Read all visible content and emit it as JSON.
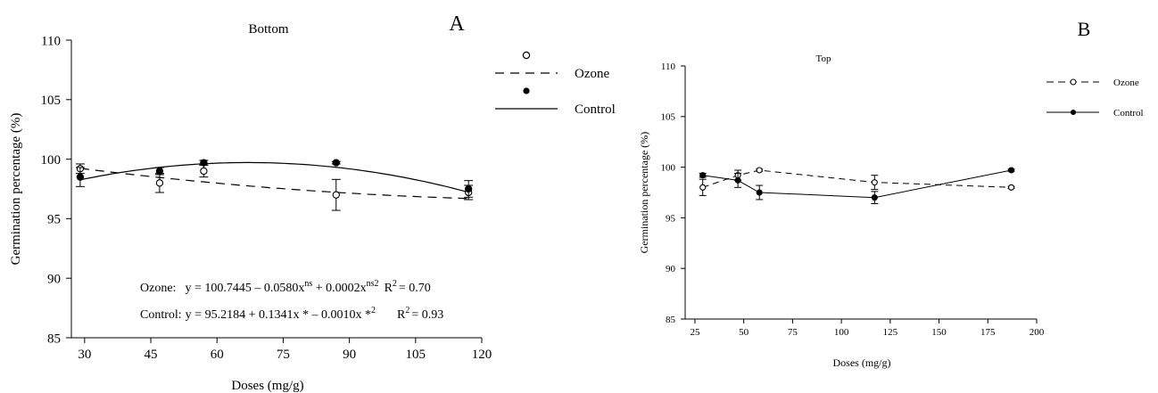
{
  "chart_data": [
    {
      "type": "scatter",
      "panel_label": "A",
      "title": "Bottom",
      "xlabel": "Doses (mg/g)",
      "ylabel": "Germination percentage (%)",
      "xlim": [
        27,
        120
      ],
      "ylim": [
        85,
        110
      ],
      "xticks": [
        30,
        45,
        60,
        75,
        90,
        105,
        120
      ],
      "yticks": [
        85,
        90,
        95,
        100,
        105,
        110
      ],
      "legend_position": "top-right",
      "series": [
        {
          "name": "Ozone",
          "marker": "open-circle",
          "line": "dashed",
          "x": [
            29,
            47,
            57,
            87,
            117
          ],
          "y": [
            99.2,
            98.0,
            99.0,
            97.0,
            97.2
          ],
          "err": [
            0.4,
            0.8,
            0.5,
            1.3,
            0.6
          ],
          "fit": [
            100.7445,
            -0.058,
            0.0002
          ]
        },
        {
          "name": "Control",
          "marker": "filled-circle",
          "line": "solid",
          "x": [
            29,
            47,
            57,
            87,
            117
          ],
          "y": [
            98.5,
            99.0,
            99.7,
            99.7,
            97.5
          ],
          "err": [
            0.8,
            0.3,
            0.2,
            0.1,
            0.7
          ],
          "fit": [
            95.2184,
            0.1341,
            -0.001
          ]
        }
      ],
      "equations": {
        "ozone": {
          "label": "Ozone:",
          "eq_a": "y = 100.7445 – 0.0580x",
          "eq_a_sup": "ns",
          "eq_b": " + 0.0002x",
          "eq_b_sup": "ns2",
          "r2": "R",
          "r2_sup": "2",
          "r2_val": "= 0.70"
        },
        "control": {
          "label": "Control:",
          "eq_a": "y = 95.2184 + 0.1341x * – 0.0010x *",
          "eq_a_sup": "2",
          "r2": "R",
          "r2_sup": "2",
          "r2_val": "= 0.93"
        }
      }
    },
    {
      "type": "line",
      "panel_label": "B",
      "title": "Top",
      "xlabel": "Doses (mg/g)",
      "ylabel": "Germination percentage (%)",
      "xlim": [
        20,
        200
      ],
      "ylim": [
        85,
        110
      ],
      "xticks": [
        25,
        50,
        75,
        100,
        125,
        150,
        175,
        200
      ],
      "yticks": [
        85,
        90,
        95,
        100,
        105,
        110
      ],
      "legend_position": "top-right",
      "series": [
        {
          "name": "Ozone",
          "marker": "open-circle",
          "line": "dashed",
          "x": [
            29,
            47,
            58,
            117,
            187
          ],
          "y": [
            98.0,
            99.2,
            99.7,
            98.5,
            98.0
          ],
          "err": [
            0.8,
            0.5,
            0.1,
            0.7,
            0.1
          ]
        },
        {
          "name": "Control",
          "marker": "filled-circle",
          "line": "solid",
          "x": [
            29,
            47,
            58,
            117,
            187
          ],
          "y": [
            99.2,
            98.7,
            97.5,
            97.0,
            99.7
          ],
          "err": [
            0.2,
            0.7,
            0.7,
            0.6,
            0.1
          ]
        }
      ]
    }
  ]
}
